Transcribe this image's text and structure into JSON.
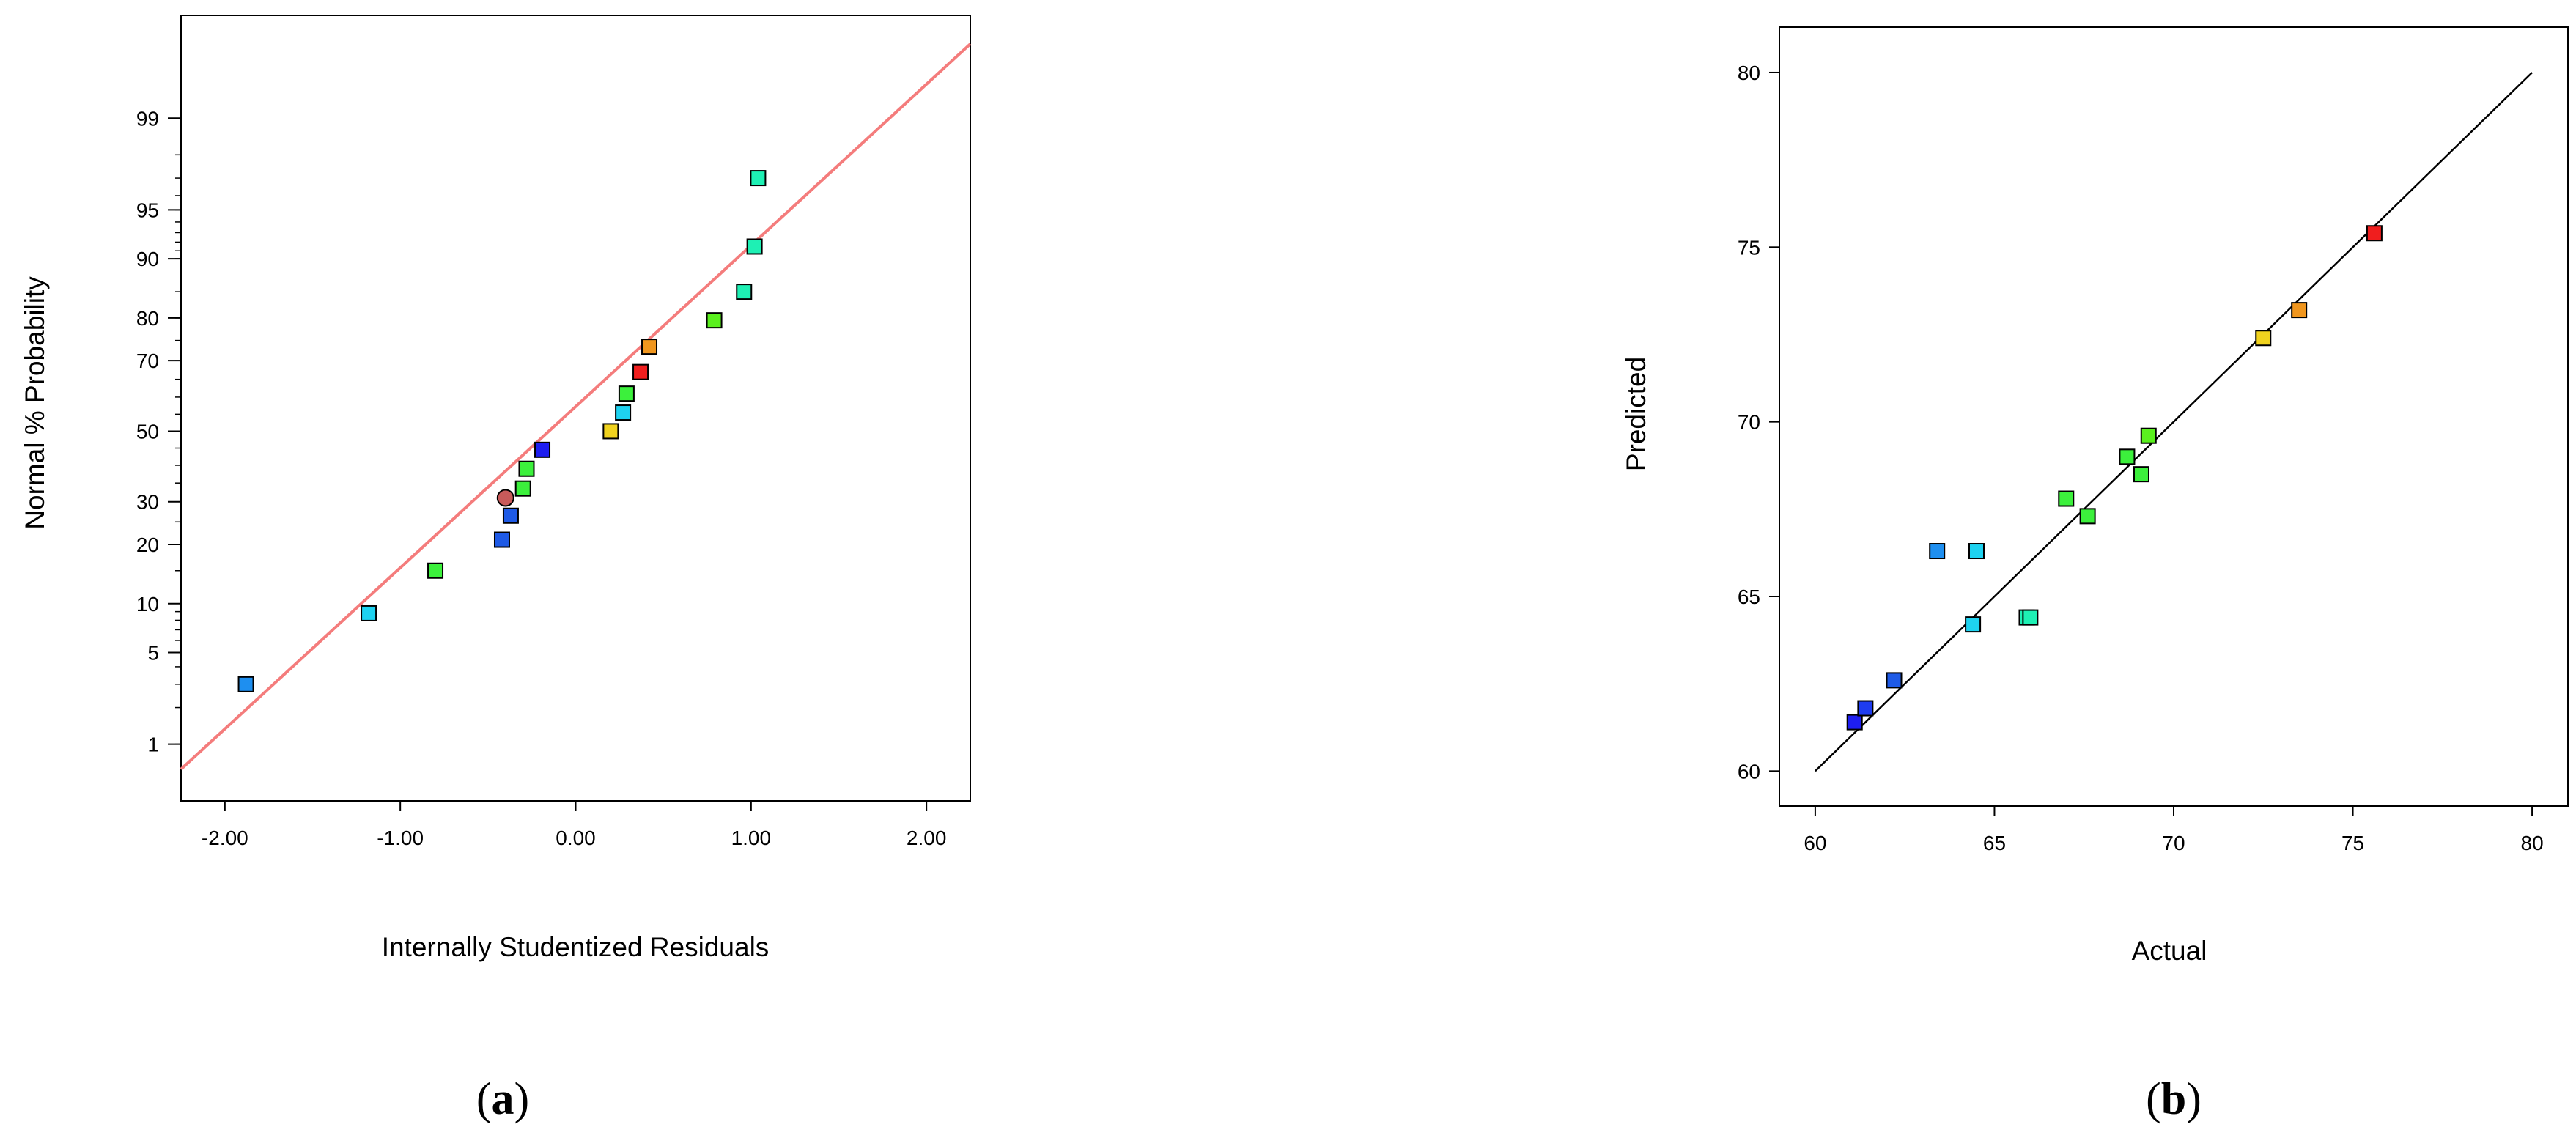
{
  "chart_data": [
    {
      "type": "scatter",
      "panel_label": "(a)",
      "panel_letter": "a",
      "xlabel": "Internally Studentized Residuals",
      "ylabel": "Normal % Probability",
      "xlim": [
        -2.25,
        2.25
      ],
      "x_ticks": [
        -2.0,
        -1.0,
        0.0,
        1.0,
        2.0
      ],
      "x_tick_labels": [
        "-2.00",
        "-1.00",
        "0.00",
        "1.00",
        "2.00"
      ],
      "y_scale": "normal-probability",
      "ylim": [
        0.3,
        99.9
      ],
      "y_ticks": [
        1,
        5,
        10,
        20,
        30,
        50,
        70,
        80,
        90,
        95,
        99
      ],
      "y_tick_labels": [
        "1",
        "5",
        "10",
        "20",
        "30",
        "50",
        "70",
        "80",
        "90",
        "95",
        "99"
      ],
      "reference_line": {
        "x": [
          -2.25,
          2.25
        ],
        "y": [
          0.6,
          99.8
        ],
        "color": "#f47c7c"
      },
      "grid": false,
      "points": [
        {
          "x": -1.88,
          "y": 3.0,
          "color": "#1e8ff0",
          "marker": "square"
        },
        {
          "x": -1.18,
          "y": 8.8,
          "color": "#1ed2f0",
          "marker": "square"
        },
        {
          "x": -0.8,
          "y": 15.0,
          "color": "#3cf03c",
          "marker": "square"
        },
        {
          "x": -0.42,
          "y": 21.0,
          "color": "#1e5ae6",
          "marker": "square"
        },
        {
          "x": -0.4,
          "y": 31.0,
          "color": "#c85a5a",
          "marker": "circle"
        },
        {
          "x": -0.37,
          "y": 26.5,
          "color": "#1e5ae6",
          "marker": "square"
        },
        {
          "x": -0.3,
          "y": 33.5,
          "color": "#3cf03c",
          "marker": "square"
        },
        {
          "x": -0.28,
          "y": 39.0,
          "color": "#3cf03c",
          "marker": "square"
        },
        {
          "x": -0.19,
          "y": 44.5,
          "color": "#1e1ef0",
          "marker": "square"
        },
        {
          "x": 0.2,
          "y": 50.0,
          "color": "#f0d21e",
          "marker": "square"
        },
        {
          "x": 0.27,
          "y": 55.5,
          "color": "#1ed2f0",
          "marker": "square"
        },
        {
          "x": 0.29,
          "y": 61.0,
          "color": "#3cf03c",
          "marker": "square"
        },
        {
          "x": 0.37,
          "y": 67.0,
          "color": "#f01e1e",
          "marker": "square"
        },
        {
          "x": 0.42,
          "y": 73.5,
          "color": "#f0961e",
          "marker": "square"
        },
        {
          "x": 0.79,
          "y": 79.5,
          "color": "#5af01e",
          "marker": "square"
        },
        {
          "x": 0.96,
          "y": 85.0,
          "color": "#1ef0b4",
          "marker": "square"
        },
        {
          "x": 1.02,
          "y": 91.5,
          "color": "#1ef0b4",
          "marker": "square"
        },
        {
          "x": 1.04,
          "y": 97.0,
          "color": "#1ef0b4",
          "marker": "square"
        }
      ]
    },
    {
      "type": "scatter",
      "panel_label": "(b)",
      "panel_letter": "b",
      "xlabel": "Actual",
      "ylabel": "Predicted",
      "xlim": [
        59,
        81
      ],
      "ylim": [
        59,
        81.3
      ],
      "x_ticks": [
        60,
        65,
        70,
        75,
        80
      ],
      "x_tick_labels": [
        "60",
        "65",
        "70",
        "75",
        "80"
      ],
      "y_ticks": [
        60,
        65,
        70,
        75,
        80
      ],
      "y_tick_labels": [
        "60",
        "65",
        "70",
        "75",
        "80"
      ],
      "reference_line": {
        "x": [
          60,
          80
        ],
        "y": [
          60,
          80
        ],
        "color": "#000000"
      },
      "grid": false,
      "points": [
        {
          "x": 61.1,
          "y": 61.4,
          "color": "#1e1ef0",
          "marker": "square"
        },
        {
          "x": 61.4,
          "y": 61.8,
          "color": "#1e3cf0",
          "marker": "square"
        },
        {
          "x": 62.2,
          "y": 62.6,
          "color": "#1e5ae6",
          "marker": "square"
        },
        {
          "x": 63.4,
          "y": 66.3,
          "color": "#1e8ff0",
          "marker": "square"
        },
        {
          "x": 64.4,
          "y": 64.2,
          "color": "#1ed2f0",
          "marker": "square"
        },
        {
          "x": 64.5,
          "y": 66.3,
          "color": "#1ed2f0",
          "marker": "square"
        },
        {
          "x": 65.9,
          "y": 64.4,
          "color": "#1ef0b4",
          "marker": "square"
        },
        {
          "x": 66.0,
          "y": 64.4,
          "color": "#1ef0b4",
          "marker": "square"
        },
        {
          "x": 67.0,
          "y": 67.8,
          "color": "#3cf03c",
          "marker": "square"
        },
        {
          "x": 67.6,
          "y": 67.3,
          "color": "#3cf03c",
          "marker": "square"
        },
        {
          "x": 68.7,
          "y": 69.0,
          "color": "#3cf03c",
          "marker": "square"
        },
        {
          "x": 69.1,
          "y": 68.5,
          "color": "#3cf03c",
          "marker": "square"
        },
        {
          "x": 69.3,
          "y": 69.6,
          "color": "#5af01e",
          "marker": "square"
        },
        {
          "x": 72.5,
          "y": 72.4,
          "color": "#f0d21e",
          "marker": "square"
        },
        {
          "x": 73.5,
          "y": 73.2,
          "color": "#f0961e",
          "marker": "square"
        },
        {
          "x": 75.6,
          "y": 75.4,
          "color": "#f01e1e",
          "marker": "square"
        }
      ]
    }
  ]
}
